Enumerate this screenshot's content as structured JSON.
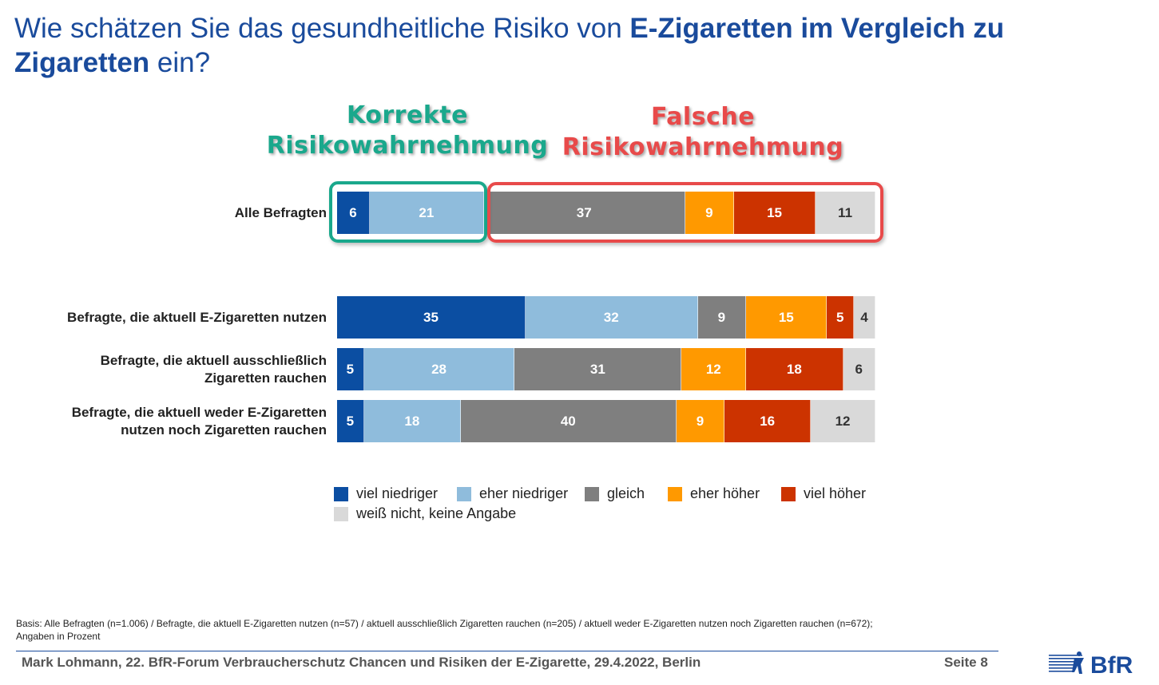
{
  "title": {
    "part1": "Wie schätzen Sie das gesundheitliche Risiko von ",
    "bold1": "E-Zigaretten im Vergleich zu",
    "bold2": "Zigaretten",
    "part2": " ein?"
  },
  "group_labels": {
    "correct_line1": "Korrekte",
    "correct_line2": "Risikowahrnehmung",
    "wrong_line1": "Falsche",
    "wrong_line2": "Risikowahrnehmung"
  },
  "chart_data": {
    "type": "bar",
    "orientation": "horizontal-stacked-100",
    "categories": [
      "Alle Befragten",
      "Befragte, die aktuell E-Zigaretten nutzen",
      "Befragte, die aktuell ausschließlich Zigaretten rauchen",
      "Befragte, die aktuell weder E-Zigaretten nutzen noch Zigaretten rauchen"
    ],
    "category_lines": [
      [
        "Alle Befragten"
      ],
      [
        "Befragte, die aktuell E-Zigaretten nutzen"
      ],
      [
        "Befragte, die aktuell ausschließlich",
        "Zigaretten rauchen"
      ],
      [
        "Befragte, die aktuell weder E-Zigaretten",
        "nutzen noch Zigaretten rauchen"
      ]
    ],
    "series": [
      {
        "name": "viel niedriger",
        "color": "#0b4ea2",
        "label_color": "#ffffff",
        "values": [
          6,
          35,
          5,
          5
        ]
      },
      {
        "name": "eher niedriger",
        "color": "#8fbcdc",
        "label_color": "#ffffff",
        "values": [
          21,
          32,
          28,
          18
        ]
      },
      {
        "name": "gleich",
        "color": "#7f7f7f",
        "label_color": "#ffffff",
        "values": [
          37,
          9,
          31,
          40
        ]
      },
      {
        "name": "eher höher",
        "color": "#ff9900",
        "label_color": "#ffffff",
        "values": [
          9,
          15,
          12,
          9
        ]
      },
      {
        "name": "viel höher",
        "color": "#cc3300",
        "label_color": "#ffffff",
        "values": [
          15,
          5,
          18,
          16
        ]
      },
      {
        "name": "weiß nicht, keine Angabe",
        "color": "#d9d9d9",
        "label_color": "#333333",
        "values": [
          11,
          4,
          6,
          12
        ]
      }
    ],
    "legend_position": "bottom",
    "unit": "Prozent"
  },
  "footnote": {
    "line1": "Basis: Alle Befragten (n=1.006) / Befragte, die aktuell E-Zigaretten nutzen (n=57) / aktuell ausschließlich Zigaretten rauchen (n=205) / aktuell weder E-Zigaretten nutzen noch Zigaretten rauchen (n=672);",
    "line2": "Angaben in Prozent"
  },
  "footer": {
    "text": "Mark Lohmann, 22. BfR-Forum Verbraucherschutz Chancen und Risiken der E-Zigarette, 29.4.2022, Berlin",
    "page": "Seite 8",
    "logo_text": "BfR"
  }
}
